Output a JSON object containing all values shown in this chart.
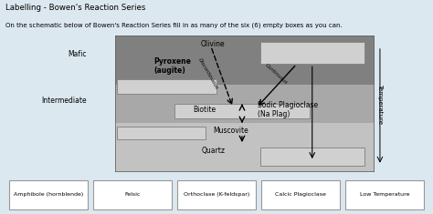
{
  "title": "Labelling - Bowen's Reaction Series",
  "subtitle": "On the schematic below of Bowen's Reaction Series fill in as many of the six (6) empty boxes as you can.",
  "bg_color": "#dce8f0",
  "mafic_color": "#7a7a7a",
  "intermediate_color": "#a0a0a0",
  "felsic_color": "#c0c0c0",
  "empty_box_color": "#d0d0d0",
  "border_color": "#666666",
  "labels": {
    "mafic": "Mafic",
    "intermediate": "Intermediate",
    "olivine": "Olivine",
    "pyroxene": "Pyroxene\n(augite)",
    "biotite": "Biotite",
    "sodic_plag": "Sodic Plagioclase\n(Na Plag)",
    "muscovite": "Muscovite",
    "quartz": "Quartz",
    "discontinuous": "Discontinuous",
    "continuous": "Continuous",
    "temperature": "Temperature"
  },
  "bottom_boxes": [
    "Amphibole (hornblende)",
    "Felsic",
    "Orthoclase (K-feldspar)",
    "Calcic Plagioclase",
    "Low Temperature"
  ]
}
